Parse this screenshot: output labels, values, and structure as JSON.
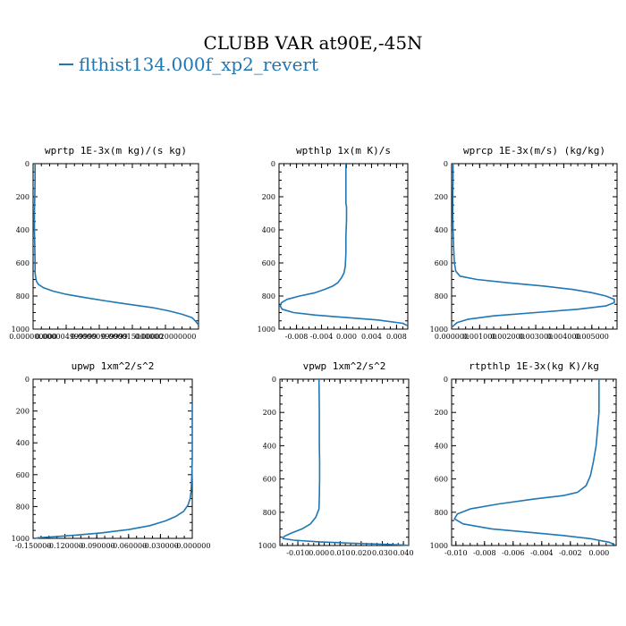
{
  "title": "CLUBB VAR at90E,-45N",
  "legend": {
    "label": "flthist134.000f_xp2_revert",
    "color": "#1f77b4"
  },
  "chart_data": [
    {
      "type": "line",
      "title": "wprtp  1E-3x(m kg)/(s kg)",
      "xlim": [
        0.0,
        2.5e-05
      ],
      "ylim": [
        0,
        1000
      ],
      "y_inverted": true,
      "yticks": [
        "0",
        "200",
        "400",
        "600",
        "800",
        "1000"
      ],
      "xticks": [
        "0.000000000",
        "0.000004999999",
        "0.00000999999",
        "0.000015000000",
        "0.000020000000"
      ],
      "xtick_values": [
        0.0,
        5e-06,
        1e-05,
        1.5e-05,
        2e-05
      ],
      "series": [
        {
          "x": [
            3e-07,
            3e-07,
            2.5e-07,
            2e-07,
            2e-07,
            2.5e-07,
            3e-07,
            3e-07,
            4e-07,
            5e-07,
            8e-07,
            1.6e-06,
            3e-06,
            5e-06,
            8e-06,
            1.1e-05,
            1.45e-05,
            1.8e-05,
            2.05e-05,
            2.25e-05,
            2.4e-05,
            2.45e-05,
            2.5e-05
          ],
          "y": [
            0,
            100,
            200,
            300,
            400,
            500,
            600,
            660,
            690,
            710,
            730,
            750,
            770,
            790,
            810,
            830,
            850,
            870,
            890,
            910,
            930,
            950,
            975
          ]
        }
      ]
    },
    {
      "type": "line",
      "title": "wpthlp  1x(m K)/s",
      "xlim": [
        -0.0108,
        0.0098
      ],
      "ylim": [
        0,
        1000
      ],
      "y_inverted": true,
      "yticks": [
        "0",
        "200",
        "400",
        "600",
        "800",
        "1000"
      ],
      "xticks": [
        "-0.008",
        "-0.004",
        "0.000",
        "0.004",
        "0.008"
      ],
      "xtick_values": [
        -0.008,
        -0.004,
        0.0,
        0.004,
        0.008
      ],
      "series": [
        {
          "x": [
            -0.0001,
            -0.0001,
            -0.0001,
            -0.0001,
            0.0,
            0.0,
            -0.0001,
            -0.0001,
            -0.0002,
            -0.0004,
            -0.0008,
            -0.0014,
            -0.0022,
            -0.0035,
            -0.005,
            -0.0075,
            -0.0095,
            -0.0104,
            -0.0106,
            -0.0103,
            -0.0085,
            -0.005,
            0.0,
            0.005,
            0.009,
            0.0098
          ],
          "y": [
            0,
            100,
            200,
            240,
            260,
            340,
            440,
            540,
            620,
            660,
            690,
            720,
            740,
            760,
            780,
            800,
            820,
            840,
            860,
            880,
            900,
            915,
            930,
            945,
            965,
            980
          ]
        }
      ]
    },
    {
      "type": "line",
      "title": "wprcp  1E-3x(m/s) (kg/kg)",
      "xlim": [
        0.0,
        0.0059
      ],
      "ylim": [
        0,
        1000
      ],
      "y_inverted": true,
      "yticks": [
        "0",
        "200",
        "400",
        "600",
        "800",
        "1000"
      ],
      "xticks": [
        "0.000000",
        "0.001000",
        "0.002000",
        "0.003000",
        "0.004000",
        "0.005000"
      ],
      "xtick_values": [
        0.0,
        0.001,
        0.002,
        0.003,
        0.004,
        0.005
      ],
      "series": [
        {
          "x": [
            5e-05,
            5e-05,
            4e-05,
            4e-05,
            5e-05,
            7e-05,
            0.0001,
            0.00015,
            0.0003,
            0.0009,
            0.002,
            0.0033,
            0.0043,
            0.005,
            0.0055,
            0.0058,
            0.0058,
            0.0055,
            0.0045,
            0.003,
            0.0015,
            0.0006,
            0.0002,
            0.0
          ],
          "y": [
            0,
            100,
            200,
            300,
            400,
            500,
            600,
            650,
            680,
            700,
            720,
            740,
            760,
            780,
            800,
            820,
            840,
            860,
            880,
            900,
            920,
            940,
            960,
            990
          ]
        }
      ]
    },
    {
      "type": "line",
      "title": "upwp  1xm^2/s^2",
      "xlim": [
        -0.15,
        0.0
      ],
      "ylim": [
        0,
        1000
      ],
      "y_inverted": true,
      "yticks": [
        "0",
        "200",
        "400",
        "600",
        "800",
        "1000"
      ],
      "xticks": [
        "-0.150000",
        "-0.120000",
        "-0.090000",
        "-0.060000",
        "-0.030000",
        "-0.000000"
      ],
      "xtick_values": [
        -0.15,
        -0.12,
        -0.09,
        -0.06,
        -0.03,
        0.0
      ],
      "series": [
        {
          "x": [
            0.0,
            0.0,
            0.0,
            -0.0005,
            -0.001,
            -0.002,
            -0.004,
            -0.008,
            -0.015,
            -0.025,
            -0.04,
            -0.06,
            -0.085,
            -0.11,
            -0.13,
            -0.145,
            -0.148
          ],
          "y": [
            150,
            300,
            500,
            620,
            700,
            750,
            790,
            830,
            860,
            890,
            920,
            945,
            965,
            980,
            990,
            996,
            1000
          ]
        }
      ]
    },
    {
      "type": "line",
      "title": "vpwp  1xm^2/s^2",
      "xlim": [
        -0.0185,
        0.0425
      ],
      "ylim": [
        0,
        1000
      ],
      "y_inverted": true,
      "yticks": [
        "0",
        "200",
        "400",
        "600",
        "800",
        "1000"
      ],
      "xticks": [
        "-0.010",
        "0.000",
        "0.010",
        "0.020",
        "0.030",
        "0.040"
      ],
      "xtick_values": [
        -0.01,
        0.0,
        0.01,
        0.02,
        0.03,
        0.04
      ],
      "series": [
        {
          "x": [
            0.0,
            0.0002,
            0.0002,
            0.0003,
            0.0003,
            0.0002,
            0.0,
            -0.0015,
            -0.004,
            -0.008,
            -0.013,
            -0.0165,
            -0.017,
            -0.012,
            0.0,
            0.015,
            0.03,
            0.04,
            0.0425
          ],
          "y": [
            0,
            200,
            400,
            500,
            600,
            700,
            780,
            830,
            870,
            900,
            925,
            945,
            958,
            968,
            978,
            986,
            992,
            997,
            1000
          ]
        }
      ]
    },
    {
      "type": "line",
      "title": "rtpthlp  1E-3x(kg K)/kg",
      "xlim": [
        -0.0103,
        0.0012
      ],
      "ylim": [
        0,
        1000
      ],
      "y_inverted": true,
      "yticks": [
        "0",
        "200",
        "400",
        "600",
        "800",
        "1000"
      ],
      "xticks": [
        "-0.010",
        "-0.008",
        "-0.006",
        "-0.004",
        "-0.002",
        "0.000"
      ],
      "xtick_values": [
        -0.01,
        -0.008,
        -0.006,
        -0.004,
        -0.002,
        0.0
      ],
      "series": [
        {
          "x": [
            0.0,
            0.0,
            -0.0001,
            -0.0002,
            -0.0004,
            -0.0006,
            -0.0009,
            -0.0015,
            -0.0025,
            -0.0045,
            -0.007,
            -0.009,
            -0.0099,
            -0.0101,
            -0.0095,
            -0.0075,
            -0.005,
            -0.0025,
            -0.0005,
            0.0007,
            0.0011
          ],
          "y": [
            0,
            200,
            300,
            400,
            500,
            580,
            640,
            680,
            700,
            720,
            750,
            780,
            810,
            840,
            870,
            900,
            920,
            940,
            960,
            980,
            995
          ]
        }
      ]
    }
  ]
}
